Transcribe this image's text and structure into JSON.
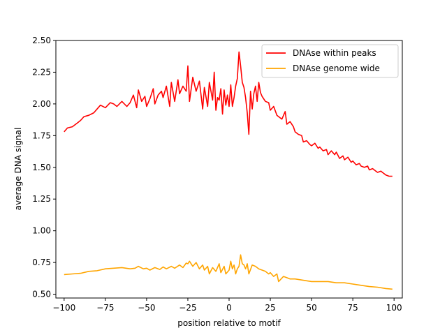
{
  "chart_data": {
    "type": "line",
    "title": "",
    "xlabel": "position relative to motif",
    "ylabel": "average DNA signal",
    "xlim": [
      -105,
      105
    ],
    "ylim": [
      0.47,
      2.5
    ],
    "xticks": [
      -100,
      -75,
      -50,
      -25,
      0,
      25,
      50,
      75,
      100
    ],
    "yticks": [
      0.5,
      0.75,
      1.0,
      1.25,
      1.5,
      1.75,
      2.0,
      2.25,
      2.5
    ],
    "ytick_labels": [
      "0.50",
      "0.75",
      "1.00",
      "1.25",
      "1.50",
      "1.75",
      "2.00",
      "2.25",
      "2.50"
    ],
    "xtick_labels": [
      "−100",
      "−75",
      "−50",
      "−25",
      "0",
      "25",
      "50",
      "75",
      "100"
    ],
    "grid": false,
    "legend_position": "top-right",
    "series": [
      {
        "name": "DNAse within peaks",
        "color": "#ff0000",
        "x": [
          -100,
          -98,
          -95,
          -92,
          -90,
          -88,
          -85,
          -82,
          -80,
          -78,
          -75,
          -72,
          -70,
          -68,
          -65,
          -62,
          -60,
          -58,
          -56,
          -55,
          -53,
          -51,
          -50,
          -48,
          -46,
          -45,
          -43,
          -41,
          -40,
          -38,
          -36,
          -35,
          -33,
          -31,
          -30,
          -28,
          -26,
          -25,
          -24,
          -22,
          -20,
          -18,
          -16,
          -15,
          -13,
          -12,
          -10,
          -9,
          -8,
          -7,
          -6,
          -5,
          -4,
          -3,
          -2,
          -1,
          0,
          1,
          2,
          3,
          4,
          5,
          6,
          7,
          8,
          9,
          10,
          11,
          12,
          13,
          14,
          15,
          16,
          17,
          18,
          19,
          20,
          22,
          24,
          25,
          27,
          29,
          30,
          32,
          34,
          35,
          37,
          39,
          40,
          42,
          44,
          45,
          47,
          49,
          50,
          52,
          54,
          55,
          57,
          59,
          60,
          62,
          64,
          65,
          67,
          69,
          70,
          72,
          74,
          75,
          77,
          79,
          80,
          82,
          84,
          85,
          87,
          89,
          90,
          92,
          94,
          95,
          97,
          99
        ],
        "values": [
          1.78,
          1.81,
          1.82,
          1.85,
          1.87,
          1.9,
          1.91,
          1.93,
          1.96,
          1.99,
          1.97,
          2.01,
          2.0,
          1.98,
          2.02,
          1.98,
          2.01,
          2.07,
          1.97,
          2.11,
          2.02,
          2.06,
          1.98,
          2.04,
          2.12,
          2.0,
          2.07,
          2.1,
          2.05,
          2.14,
          1.98,
          2.17,
          2.02,
          2.19,
          2.08,
          2.14,
          2.1,
          2.3,
          2.02,
          2.21,
          2.1,
          2.18,
          1.96,
          2.13,
          1.98,
          2.17,
          2.03,
          2.25,
          1.95,
          2.05,
          2.03,
          2.12,
          1.92,
          2.11,
          1.99,
          2.07,
          1.98,
          2.15,
          1.98,
          2.05,
          2.14,
          2.2,
          2.41,
          2.3,
          2.17,
          2.13,
          2.05,
          1.93,
          1.76,
          2.1,
          1.96,
          2.08,
          2.14,
          2.02,
          2.17,
          2.09,
          2.06,
          2.02,
          2.01,
          1.95,
          1.98,
          1.91,
          1.9,
          1.88,
          1.94,
          1.84,
          1.86,
          1.82,
          1.78,
          1.76,
          1.75,
          1.7,
          1.71,
          1.68,
          1.67,
          1.69,
          1.65,
          1.66,
          1.63,
          1.64,
          1.6,
          1.63,
          1.6,
          1.62,
          1.57,
          1.59,
          1.56,
          1.58,
          1.54,
          1.55,
          1.52,
          1.53,
          1.51,
          1.5,
          1.51,
          1.48,
          1.49,
          1.47,
          1.46,
          1.47,
          1.45,
          1.44,
          1.43,
          1.43
        ]
      },
      {
        "name": "DNAse genome wide",
        "color": "#ffa500",
        "x": [
          -100,
          -95,
          -90,
          -85,
          -80,
          -75,
          -70,
          -65,
          -60,
          -57,
          -55,
          -52,
          -50,
          -48,
          -45,
          -42,
          -40,
          -38,
          -35,
          -33,
          -30,
          -28,
          -26,
          -25,
          -24,
          -22,
          -20,
          -18,
          -16,
          -15,
          -13,
          -12,
          -10,
          -8,
          -6,
          -5,
          -3,
          -2,
          0,
          1,
          2,
          3,
          4,
          5,
          6,
          7,
          8,
          9,
          10,
          11,
          12,
          14,
          16,
          18,
          20,
          22,
          24,
          25,
          27,
          29,
          30,
          33,
          35,
          37,
          40,
          45,
          50,
          55,
          60,
          65,
          70,
          75,
          80,
          85,
          90,
          95,
          99
        ],
        "values": [
          0.655,
          0.66,
          0.665,
          0.68,
          0.685,
          0.7,
          0.705,
          0.71,
          0.7,
          0.705,
          0.72,
          0.7,
          0.705,
          0.69,
          0.71,
          0.695,
          0.715,
          0.7,
          0.72,
          0.705,
          0.73,
          0.71,
          0.745,
          0.74,
          0.76,
          0.72,
          0.75,
          0.7,
          0.73,
          0.69,
          0.72,
          0.66,
          0.71,
          0.68,
          0.74,
          0.67,
          0.72,
          0.66,
          0.69,
          0.76,
          0.7,
          0.73,
          0.66,
          0.7,
          0.72,
          0.81,
          0.74,
          0.73,
          0.7,
          0.74,
          0.66,
          0.73,
          0.72,
          0.7,
          0.69,
          0.68,
          0.66,
          0.67,
          0.64,
          0.66,
          0.6,
          0.64,
          0.63,
          0.62,
          0.62,
          0.61,
          0.6,
          0.6,
          0.6,
          0.59,
          0.59,
          0.58,
          0.57,
          0.56,
          0.555,
          0.545,
          0.54
        ]
      }
    ]
  }
}
